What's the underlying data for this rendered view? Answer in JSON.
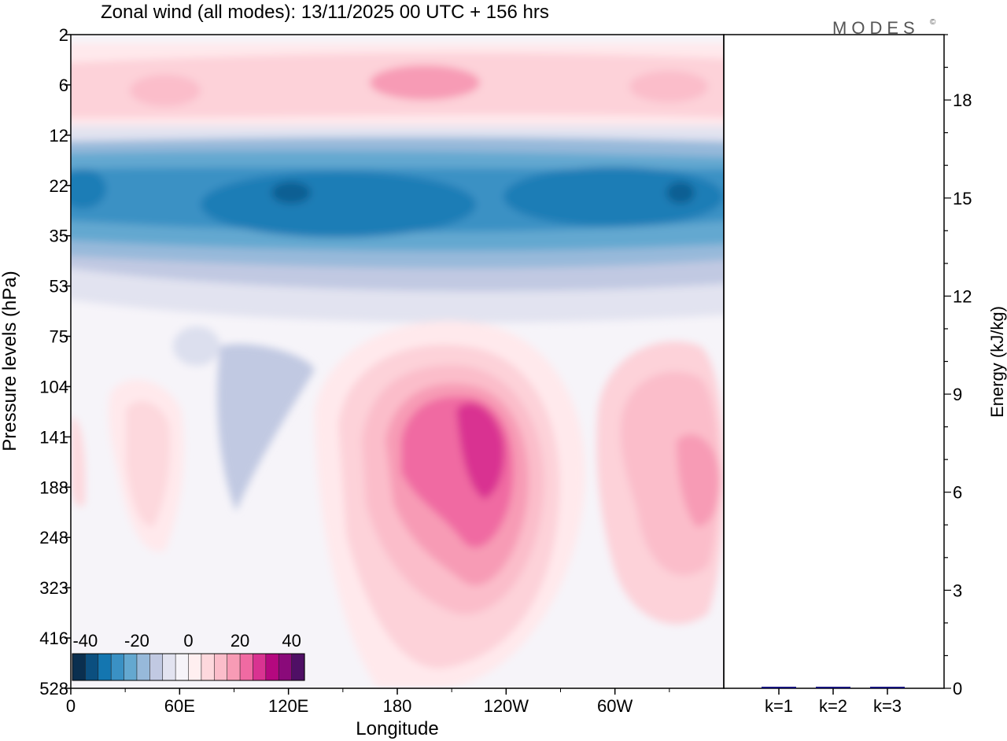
{
  "title": "Zonal wind (all modes):  13/11/2025  00 UTC  + 156 hrs",
  "logo_text": "MODES",
  "logo_mark": "©",
  "chart_data": [
    {
      "type": "heatmap",
      "title": "Zonal wind (all modes):  13/11/2025  00 UTC  + 156 hrs",
      "xlabel": "Longitude",
      "ylabel": "Pressure levels (hPa)",
      "x_ticks": [
        {
          "lon": 0,
          "label": "0"
        },
        {
          "lon": 60,
          "label": "60E"
        },
        {
          "lon": 120,
          "label": "120E"
        },
        {
          "lon": 180,
          "label": "180"
        },
        {
          "lon": 240,
          "label": "120W"
        },
        {
          "lon": 300,
          "label": "60W"
        }
      ],
      "xlim": [
        0,
        360
      ],
      "y_levels": [
        "2",
        "6",
        "12",
        "22",
        "35",
        "53",
        "75",
        "104",
        "141",
        "188",
        "248",
        "323",
        "416",
        "528"
      ],
      "colorbar": {
        "ticks": [
          "-40",
          "-20",
          "0",
          "20",
          "40"
        ],
        "range": [
          -45,
          45
        ],
        "colors": [
          "#0a2f4f",
          "#0b4f7f",
          "#1476b0",
          "#3a91c4",
          "#64a8d0",
          "#97b9da",
          "#c1c9e2",
          "#e2e3f0",
          "#f6f4f9",
          "#ffeff0",
          "#fdd8dd",
          "#fbbdca",
          "#f79bb5",
          "#f06aa2",
          "#d93391",
          "#b5087f",
          "#8a0a7a",
          "#4f0f65"
        ]
      },
      "features": [
        {
          "name": "upper-stratosphere-easterly-band",
          "lon": [
            0,
            360
          ],
          "levels": [
            "12",
            "53"
          ],
          "value": -30
        },
        {
          "name": "upper-westerly-layer",
          "lon": [
            0,
            360
          ],
          "levels": [
            "2",
            "12"
          ],
          "value": 10
        },
        {
          "name": "jet-core-pacific",
          "lon": [
            165,
            275
          ],
          "levels": [
            "75",
            "416"
          ],
          "value": 30
        },
        {
          "name": "jet-core-atlantic",
          "lon": [
            290,
            360
          ],
          "levels": [
            "104",
            "323"
          ],
          "value": 20
        },
        {
          "name": "jet-minor-west",
          "lon": [
            20,
            60
          ],
          "levels": [
            "104",
            "323"
          ],
          "value": 8
        }
      ]
    },
    {
      "type": "bar",
      "categories": [
        "k=1",
        "k=2",
        "k=3"
      ],
      "values": [
        0.04,
        0.02,
        0.01
      ],
      "ylabel": "Energy (kJ/kg)",
      "ylim": [
        0,
        20
      ],
      "y_ticks": [
        "0",
        "3",
        "6",
        "9",
        "12",
        "15",
        "18"
      ],
      "colors": {
        "bar": "#14127a"
      }
    }
  ]
}
